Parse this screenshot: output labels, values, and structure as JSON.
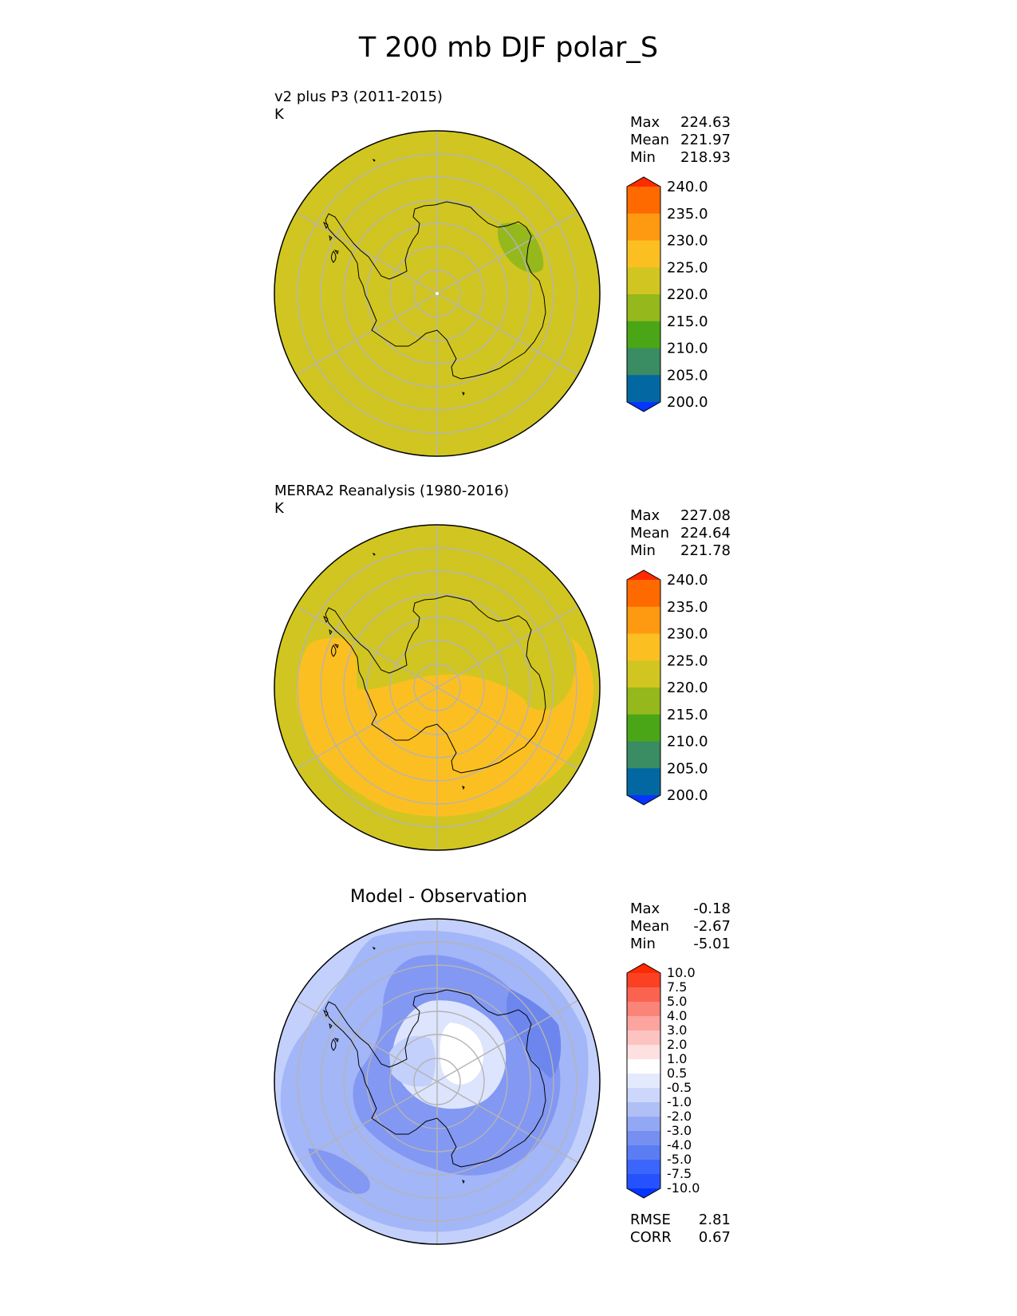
{
  "figure": {
    "title": "T 200 mb DJF polar_S"
  },
  "colors": {
    "background": "#d1c621",
    "green_low": "#95b81d",
    "orange_high": "#fcbf22",
    "diff_light": "#c3d0fb",
    "diff_mid": "#a3b6f8",
    "diff_dark": "#8398f2",
    "diff_darker": "#6d86ee",
    "diff_white": "#ffffff",
    "diff_pale": "#dde4fd",
    "coast": "#000000",
    "grid": "#b4b4b4"
  },
  "chart_data": [
    {
      "type": "heatmap",
      "projection": "south polar stereographic",
      "title": "v2 plus P3 (2011-2015)",
      "units": "K",
      "stats": [
        {
          "label": "Max",
          "value": "224.63"
        },
        {
          "label": "Mean",
          "value": "221.97"
        },
        {
          "label": "Min",
          "value": "218.93"
        }
      ],
      "colorbar": {
        "levels": [
          200,
          205,
          210,
          215,
          220,
          225,
          230,
          235,
          240
        ],
        "tick_labels": [
          "200.0",
          "205.0",
          "210.0",
          "215.0",
          "220.0",
          "225.0",
          "230.0",
          "235.0",
          "240.0"
        ],
        "colors": [
          "#0535ff",
          "#0368a1",
          "#3a8c62",
          "#4aa616",
          "#95b81d",
          "#d1c621",
          "#fcbf22",
          "#fe9a12",
          "#fe6a00",
          "#ff2a00"
        ],
        "extend": "both"
      }
    },
    {
      "type": "heatmap",
      "projection": "south polar stereographic",
      "title": "MERRA2 Reanalysis (1980-2016)",
      "units": "K",
      "stats": [
        {
          "label": "Max",
          "value": "227.08"
        },
        {
          "label": "Mean",
          "value": "224.64"
        },
        {
          "label": "Min",
          "value": "221.78"
        }
      ],
      "colorbar": {
        "levels": [
          200,
          205,
          210,
          215,
          220,
          225,
          230,
          235,
          240
        ],
        "tick_labels": [
          "200.0",
          "205.0",
          "210.0",
          "215.0",
          "220.0",
          "225.0",
          "230.0",
          "235.0",
          "240.0"
        ],
        "colors": [
          "#0535ff",
          "#0368a1",
          "#3a8c62",
          "#4aa616",
          "#95b81d",
          "#d1c621",
          "#fcbf22",
          "#fe9a12",
          "#fe6a00",
          "#ff2a00"
        ],
        "extend": "both"
      }
    },
    {
      "type": "heatmap",
      "projection": "south polar stereographic",
      "title": "Model - Observation",
      "stats": [
        {
          "label": "Max",
          "value": "-0.18"
        },
        {
          "label": "Mean",
          "value": "-2.67"
        },
        {
          "label": "Min",
          "value": "-5.01"
        }
      ],
      "metrics": [
        {
          "label": "RMSE",
          "value": "2.81"
        },
        {
          "label": "CORR",
          "value": "0.67"
        }
      ],
      "colorbar": {
        "levels": [
          -10,
          -7.5,
          -5,
          -4,
          -3,
          -2,
          -1,
          -0.5,
          0.5,
          1,
          2,
          3,
          4,
          5,
          7.5,
          10
        ],
        "tick_labels": [
          "-10.0",
          "-7.5",
          "-5.0",
          "-4.0",
          "-3.0",
          "-2.0",
          "-1.0",
          "-0.5",
          "0.5",
          "1.0",
          "2.0",
          "3.0",
          "4.0",
          "5.0",
          "7.5",
          "10.0"
        ],
        "colors": [
          "#0535ff",
          "#2552fd",
          "#3c65fb",
          "#5a7df4",
          "#7690f2",
          "#93a8f4",
          "#b0c0f7",
          "#ccd7fb",
          "#e4eafd",
          "#ffffff",
          "#fde0e0",
          "#fcc3c0",
          "#fca49e",
          "#fb8478",
          "#fb6351",
          "#fa4124",
          "#ff2a00"
        ],
        "extend": "both"
      }
    }
  ]
}
